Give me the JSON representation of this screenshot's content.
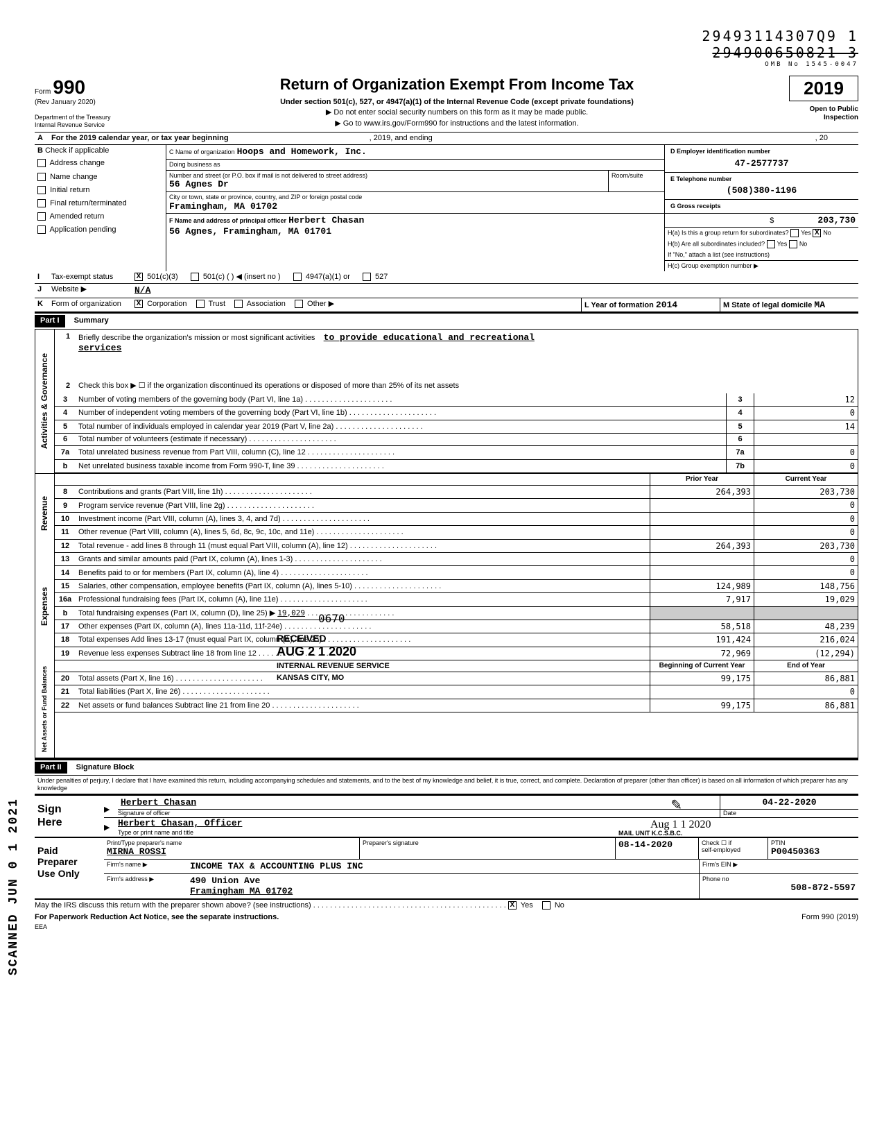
{
  "stamp": {
    "line1": "29493114307Q9 1",
    "line2": "294900650821 3",
    "omb": "OMB No 1545-0047"
  },
  "header": {
    "form_word": "Form",
    "form_num": "990",
    "rev": "(Rev January 2020)",
    "dept": "Department of the Treasury",
    "irs": "Internal Revenue Service",
    "title": "Return of Organization Exempt From Income Tax",
    "sub1": "Under section 501(c), 527, or 4947(a)(1) of the Internal Revenue Code (except private foundations)",
    "sub2": "▶ Do not enter social security numbers on this form as it may be made public.",
    "sub3": "▶ Go to www.irs.gov/Form990 for instructions and the latest information.",
    "year": "2019",
    "open": "Open to Public",
    "insp": "Inspection"
  },
  "lineA": {
    "label": "For the 2019 calendar year, or tax year beginning",
    "mid": ", 2019, and ending",
    "end": ", 20"
  },
  "lineB": {
    "label": "Check if applicable",
    "items": [
      "Address change",
      "Name change",
      "Initial return",
      "Final return/terminated",
      "Amended return",
      "Application pending"
    ]
  },
  "boxC": {
    "label": "C  Name of organization",
    "val": "Hoops and Homework, Inc.",
    "dba": "Doing business as",
    "street_lbl": "Number and street (or P.O. box if mail is not delivered to street address)",
    "street_val": "56 Agnes Dr",
    "city_lbl": "City or town, state or province, country, and ZIP or foreign postal code",
    "city_val": "Framingham, MA 01702",
    "room": "Room/suite"
  },
  "boxD": {
    "label": "D  Employer identification number",
    "val": "47-2577737"
  },
  "boxE": {
    "label": "E  Telephone number",
    "val": "(508)380-1196"
  },
  "boxF": {
    "label": "F  Name and address of principal officer",
    "name": "Herbert Chasan",
    "addr": "56 Agnes, Framingham, MA 01701"
  },
  "boxG": {
    "label": "G  Gross receipts",
    "sym": "$",
    "val": "203,730"
  },
  "boxH": {
    "a": "H(a) Is this a group return for subordinates?",
    "b": "H(b) Are all subordinates included?",
    "no_note": "If \"No,\" attach a list (see instructions)",
    "c": "H(c)  Group exemption number ▶",
    "yes": "Yes",
    "no": "No"
  },
  "lineI": {
    "label": "Tax-exempt status",
    "opts": [
      "501(c)(3)",
      "501(c) (",
      "4947(a)(1) or",
      "527"
    ],
    "insert": ") ◀ (insert no )"
  },
  "lineJ": {
    "label": "Website ▶",
    "val": "N/A"
  },
  "lineK": {
    "label": "Form of organization",
    "opts": [
      "Corporation",
      "Trust",
      "Association",
      "Other ▶"
    ],
    "year_lbl": "L  Year of formation",
    "year_val": "2014",
    "state_lbl": "M  State of legal domicile",
    "state_val": "MA"
  },
  "part1": {
    "header": "Part I",
    "title": "Summary"
  },
  "summary": {
    "line1_lbl": "Briefly describe the organization's mission or most significant activities",
    "line1_val": "to provide educational and recreational",
    "line1_val2": "services",
    "line2": "Check this box ▶ ☐ if the organization discontinued its operations or disposed of more than 25% of its net assets",
    "rows": [
      {
        "n": "3",
        "lbl": "Number of voting members of the governing body (Part VI, line 1a)",
        "box": "3",
        "val": "12"
      },
      {
        "n": "4",
        "lbl": "Number of independent voting members of the governing body (Part VI, line 1b)",
        "box": "4",
        "val": "0"
      },
      {
        "n": "5",
        "lbl": "Total number of individuals employed in calendar year 2019 (Part V, line 2a)",
        "box": "5",
        "val": "14"
      },
      {
        "n": "6",
        "lbl": "Total number of volunteers (estimate if necessary)",
        "box": "6",
        "val": ""
      },
      {
        "n": "7a",
        "lbl": "Total unrelated business revenue from Part VIII, column (C), line 12",
        "box": "7a",
        "val": "0"
      },
      {
        "n": "b",
        "lbl": "Net unrelated business taxable income from Form 990-T, line 39",
        "box": "7b",
        "val": "0"
      }
    ]
  },
  "revenue": {
    "head_prior": "Prior Year",
    "head_curr": "Current Year",
    "rows": [
      {
        "n": "8",
        "lbl": "Contributions and grants (Part VIII, line 1h)",
        "p": "264,393",
        "c": "203,730"
      },
      {
        "n": "9",
        "lbl": "Program service revenue (Part VIII, line 2g)",
        "p": "",
        "c": "0"
      },
      {
        "n": "10",
        "lbl": "Investment income (Part VIII, column (A), lines 3, 4, and 7d)",
        "p": "",
        "c": "0"
      },
      {
        "n": "11",
        "lbl": "Other revenue (Part VIII, column (A), lines 5, 6d, 8c, 9c, 10c, and 11e)",
        "p": "",
        "c": "0"
      },
      {
        "n": "12",
        "lbl": "Total revenue - add lines 8 through 11 (must equal Part VIII, column (A), line 12)",
        "p": "264,393",
        "c": "203,730"
      }
    ]
  },
  "expenses": {
    "rows": [
      {
        "n": "13",
        "lbl": "Grants and similar amounts paid (Part IX, column (A), lines 1-3)",
        "p": "",
        "c": "0"
      },
      {
        "n": "14",
        "lbl": "Benefits paid to or for members (Part IX, column (A), line 4)",
        "p": "",
        "c": "0"
      },
      {
        "n": "15",
        "lbl": "Salaries, other compensation, employee benefits (Part IX, column (A), lines 5-10)",
        "p": "124,989",
        "c": "148,756"
      },
      {
        "n": "16a",
        "lbl": "Professional fundraising fees (Part IX, column (A), line 11e)",
        "p": "7,917",
        "c": "19,029"
      },
      {
        "n": "b",
        "lbl": "Total fundraising expenses (Part IX, column (D), line 25) ▶",
        "inline": "19,029",
        "p": "",
        "c": "",
        "shaded": true
      },
      {
        "n": "17",
        "lbl": "Other expenses (Part IX, column (A), lines 11a-11d, 11f-24e)",
        "p": "58,518",
        "c": "48,239"
      },
      {
        "n": "18",
        "lbl": "Total expenses  Add lines 13-17 (must equal Part IX, column (A), line 25)",
        "p": "191,424",
        "c": "216,024"
      },
      {
        "n": "19",
        "lbl": "Revenue less expenses  Subtract line 18 from line 12",
        "p": "72,969",
        "c": "(12,294)"
      }
    ]
  },
  "netassets": {
    "head_begin": "Beginning of Current Year",
    "head_end": "End of Year",
    "rows": [
      {
        "n": "20",
        "lbl": "Total assets (Part X, line 16)",
        "p": "99,175",
        "c": "86,881"
      },
      {
        "n": "21",
        "lbl": "Total liabilities (Part X, line 26)",
        "p": "",
        "c": "0"
      },
      {
        "n": "22",
        "lbl": "Net assets or fund balances  Subtract line 21 from line 20",
        "p": "99,175",
        "c": "86,881"
      }
    ]
  },
  "part2": {
    "header": "Part II",
    "title": "Signature Block",
    "penalty": "Under penalties of perjury, I declare that I have examined this return, including accompanying schedules and statements, and to the best of my knowledge and belief, it is true, correct, and complete. Declaration of preparer (other than officer) is based on all information of which preparer has any knowledge"
  },
  "sign": {
    "here": "Sign\nHere",
    "name": "Herbert Chasan",
    "sig_lbl": "Signature of officer",
    "date": "04-22-2020",
    "date_lbl": "Date",
    "name2": "Herbert Chasan, Officer",
    "name2_lbl": "Type or print name and title",
    "aug": "Aug 1 1 2020"
  },
  "preparer": {
    "label": "Paid\nPreparer\nUse Only",
    "h1": "Print/Type preparer's name",
    "h2": "Preparer's signature",
    "h3": "Date",
    "h4": "Check ☐ if",
    "h5": "PTIN",
    "name": "MIRNA ROSSI",
    "date": "08-14-2020",
    "self": "self-employed",
    "ptin": "P00450363",
    "firm_lbl": "Firm's name ▶",
    "firm": "INCOME TAX & ACCOUNTING PLUS INC",
    "ein_lbl": "Firm's EIN ▶",
    "addr_lbl": "Firm's address ▶",
    "addr1": "490 Union Ave",
    "addr2": "Framingham MA 01702",
    "phone_lbl": "Phone no",
    "phone": "508-872-5597"
  },
  "footer": {
    "discuss": "May the IRS discuss this return with the preparer shown above? (see instructions)",
    "yes": "Yes",
    "no": "No",
    "pra": "For Paperwork Reduction Act Notice, see the separate instructions.",
    "eea": "EEA",
    "form": "Form 990 (2019)"
  },
  "stamps": {
    "received": "RECEIVED",
    "received_date": "0670",
    "aug21": "AUG 2 1 2020",
    "irs": "INTERNAL REVENUE SERVICE",
    "kc": "KANSAS CITY, MO",
    "mail": "MAIL UNIT K.C.S.B.C.",
    "scanned": "SCANNED JUN 0 1 2021"
  },
  "side_labels": {
    "ag": "Activities & Governance",
    "rev": "Revenue",
    "exp": "Expenses",
    "na": "Net Assets or\nFund Balances"
  },
  "colors": {
    "bg": "#ffffff",
    "ink": "#000000",
    "shade": "#cccccc"
  }
}
